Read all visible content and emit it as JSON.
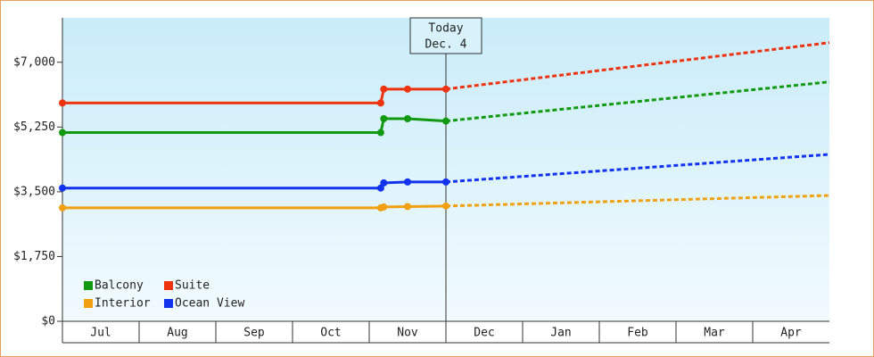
{
  "chart_data": {
    "type": "line",
    "categories": [
      "Jul",
      "Aug",
      "Sep",
      "Oct",
      "Nov",
      "Dec",
      "Jan",
      "Feb",
      "Mar",
      "Apr"
    ],
    "xlim": [
      0,
      10
    ],
    "ylim": [
      0,
      8200
    ],
    "yticks": [
      {
        "value": 0,
        "label": "$0"
      },
      {
        "value": 1750,
        "label": "$1,750"
      },
      {
        "value": 3500,
        "label": "$3,500"
      },
      {
        "value": 5250,
        "label": "$5,250"
      },
      {
        "value": 7000,
        "label": "$7,000"
      }
    ],
    "grid": false,
    "legend": "bottom-left",
    "today": {
      "x": 5.0,
      "label": [
        "Today",
        "Dec. 4"
      ]
    },
    "x": [
      0,
      4.15,
      4.19,
      4.5,
      5.0
    ],
    "projected_x": [
      5.0,
      10.0
    ],
    "series": [
      {
        "name": "Balcony",
        "color": "#119911",
        "values": [
          5100,
          5100,
          5475,
          5475,
          5410
        ],
        "projected_values": [
          5410,
          6470
        ]
      },
      {
        "name": "Suite",
        "color": "#ee3311",
        "values": [
          5900,
          5900,
          6275,
          6275,
          6275
        ],
        "projected_values": [
          6275,
          7530
        ]
      },
      {
        "name": "Interior",
        "color": "#f0a010",
        "values": [
          3065,
          3065,
          3090,
          3100,
          3115
        ],
        "projected_values": [
          3115,
          3400
        ]
      },
      {
        "name": "Ocean View",
        "color": "#1133ee",
        "values": [
          3600,
          3600,
          3740,
          3765,
          3765
        ],
        "projected_values": [
          3765,
          4510
        ]
      }
    ]
  }
}
